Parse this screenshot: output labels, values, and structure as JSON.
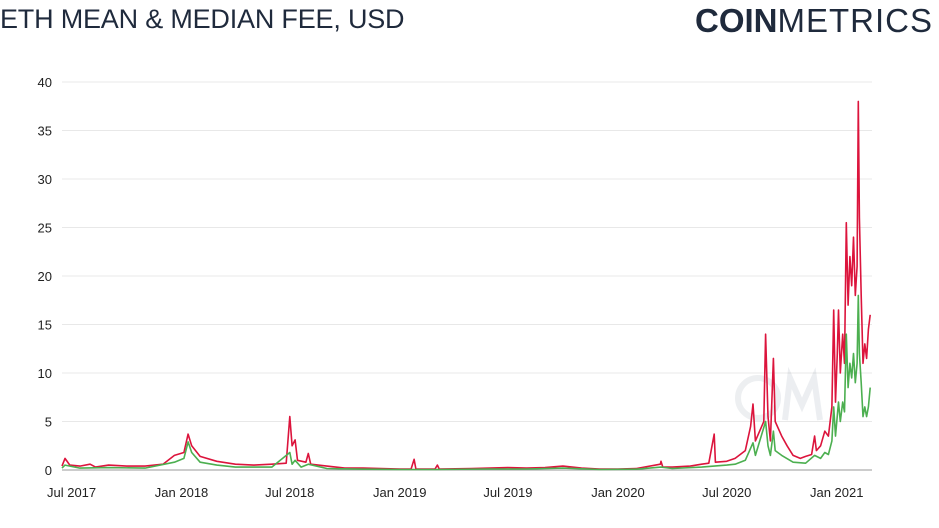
{
  "header": {
    "title": "ETH MEAN & MEDIAN FEE, USD",
    "logo_bold": "COIN",
    "logo_light": "METRICS"
  },
  "colors": {
    "mean": "#dc143c",
    "median": "#4caf50",
    "text": "#1f2a3c",
    "grid": "#e8e8e8"
  },
  "chart_data": {
    "type": "line",
    "title": "ETH MEAN & MEDIAN FEE, USD",
    "xlabel": "",
    "ylabel": "",
    "ylim": [
      0,
      40
    ],
    "yticks": [
      "0",
      "5",
      "10",
      "15",
      "20",
      "25",
      "30",
      "35",
      "40"
    ],
    "xlim": [
      "2017-06-15",
      "2021-03-01"
    ],
    "xticks": [
      {
        "date": "2017-07-01",
        "label": "Jul 2017"
      },
      {
        "date": "2018-01-01",
        "label": "Jan 2018"
      },
      {
        "date": "2018-07-01",
        "label": "Jul 2018"
      },
      {
        "date": "2019-01-01",
        "label": "Jan 2019"
      },
      {
        "date": "2019-07-01",
        "label": "Jul 2019"
      },
      {
        "date": "2020-01-01",
        "label": "Jan 2020"
      },
      {
        "date": "2020-07-01",
        "label": "Jul 2020"
      },
      {
        "date": "2021-01-01",
        "label": "Jan 2021"
      }
    ],
    "grid": true,
    "series": [
      {
        "color": "#dc143c",
        "points": [
          [
            "2017-06-15",
            0.4
          ],
          [
            "2017-06-20",
            1.2
          ],
          [
            "2017-06-28",
            0.5
          ],
          [
            "2017-07-15",
            0.4
          ],
          [
            "2017-08-01",
            0.6
          ],
          [
            "2017-08-10",
            0.3
          ],
          [
            "2017-09-01",
            0.5
          ],
          [
            "2017-10-01",
            0.4
          ],
          [
            "2017-11-01",
            0.4
          ],
          [
            "2017-12-01",
            0.6
          ],
          [
            "2017-12-20",
            1.5
          ],
          [
            "2018-01-05",
            1.8
          ],
          [
            "2018-01-12",
            3.7
          ],
          [
            "2018-01-18",
            2.5
          ],
          [
            "2018-02-01",
            1.4
          ],
          [
            "2018-03-01",
            0.9
          ],
          [
            "2018-04-01",
            0.6
          ],
          [
            "2018-05-01",
            0.5
          ],
          [
            "2018-06-01",
            0.6
          ],
          [
            "2018-06-25",
            0.7
          ],
          [
            "2018-07-01",
            5.5
          ],
          [
            "2018-07-05",
            2.5
          ],
          [
            "2018-07-10",
            3.1
          ],
          [
            "2018-07-14",
            1.0
          ],
          [
            "2018-07-28",
            0.8
          ],
          [
            "2018-08-01",
            1.7
          ],
          [
            "2018-08-05",
            0.6
          ],
          [
            "2018-09-01",
            0.4
          ],
          [
            "2018-10-01",
            0.2
          ],
          [
            "2018-11-01",
            0.2
          ],
          [
            "2018-12-01",
            0.15
          ],
          [
            "2019-01-01",
            0.1
          ],
          [
            "2019-01-20",
            0.1
          ],
          [
            "2019-01-25",
            1.1
          ],
          [
            "2019-01-28",
            0.1
          ],
          [
            "2019-03-01",
            0.1
          ],
          [
            "2019-03-05",
            0.5
          ],
          [
            "2019-03-08",
            0.1
          ],
          [
            "2019-05-01",
            0.15
          ],
          [
            "2019-06-01",
            0.2
          ],
          [
            "2019-07-01",
            0.25
          ],
          [
            "2019-08-01",
            0.2
          ],
          [
            "2019-09-01",
            0.25
          ],
          [
            "2019-10-01",
            0.4
          ],
          [
            "2019-11-01",
            0.2
          ],
          [
            "2019-12-01",
            0.1
          ],
          [
            "2020-01-01",
            0.1
          ],
          [
            "2020-02-01",
            0.15
          ],
          [
            "2020-03-12",
            0.6
          ],
          [
            "2020-03-13",
            0.9
          ],
          [
            "2020-03-16",
            0.3
          ],
          [
            "2020-04-01",
            0.3
          ],
          [
            "2020-05-01",
            0.4
          ],
          [
            "2020-05-20",
            0.6
          ],
          [
            "2020-06-01",
            0.7
          ],
          [
            "2020-06-10",
            3.7
          ],
          [
            "2020-06-12",
            0.8
          ],
          [
            "2020-07-01",
            0.9
          ],
          [
            "2020-07-15",
            1.2
          ],
          [
            "2020-08-01",
            2.0
          ],
          [
            "2020-08-10",
            4.5
          ],
          [
            "2020-08-14",
            6.8
          ],
          [
            "2020-08-18",
            3.0
          ],
          [
            "2020-09-01",
            5.0
          ],
          [
            "2020-09-04",
            14.0
          ],
          [
            "2020-09-08",
            5.5
          ],
          [
            "2020-09-12",
            3.0
          ],
          [
            "2020-09-17",
            11.5
          ],
          [
            "2020-09-20",
            5.0
          ],
          [
            "2020-10-01",
            3.5
          ],
          [
            "2020-10-10",
            2.5
          ],
          [
            "2020-10-20",
            1.5
          ],
          [
            "2020-11-01",
            1.2
          ],
          [
            "2020-11-10",
            1.4
          ],
          [
            "2020-11-20",
            1.6
          ],
          [
            "2020-11-25",
            3.5
          ],
          [
            "2020-11-28",
            2.0
          ],
          [
            "2020-12-05",
            2.5
          ],
          [
            "2020-12-12",
            4.0
          ],
          [
            "2020-12-18",
            3.5
          ],
          [
            "2020-12-24",
            6.5
          ],
          [
            "2020-12-27",
            16.5
          ],
          [
            "2020-12-30",
            7.0
          ],
          [
            "2021-01-02",
            12.0
          ],
          [
            "2021-01-04",
            16.5
          ],
          [
            "2021-01-07",
            10.0
          ],
          [
            "2021-01-11",
            14.0
          ],
          [
            "2021-01-14",
            11.0
          ],
          [
            "2021-01-17",
            25.5
          ],
          [
            "2021-01-20",
            17.0
          ],
          [
            "2021-01-23",
            22.0
          ],
          [
            "2021-01-26",
            19.0
          ],
          [
            "2021-01-29",
            24.0
          ],
          [
            "2021-02-01",
            18.0
          ],
          [
            "2021-02-04",
            21.0
          ],
          [
            "2021-02-06",
            38.0
          ],
          [
            "2021-02-08",
            26.0
          ],
          [
            "2021-02-11",
            18.0
          ],
          [
            "2021-02-14",
            11.0
          ],
          [
            "2021-02-17",
            13.0
          ],
          [
            "2021-02-20",
            11.5
          ],
          [
            "2021-02-23",
            14.5
          ],
          [
            "2021-02-26",
            16.0
          ]
        ]
      },
      {
        "color": "#4caf50",
        "points": [
          [
            "2017-06-15",
            0.2
          ],
          [
            "2017-06-20",
            0.5
          ],
          [
            "2017-07-15",
            0.2
          ],
          [
            "2017-09-01",
            0.25
          ],
          [
            "2017-11-01",
            0.2
          ],
          [
            "2017-12-20",
            0.8
          ],
          [
            "2018-01-05",
            1.2
          ],
          [
            "2018-01-12",
            2.9
          ],
          [
            "2018-01-18",
            1.8
          ],
          [
            "2018-02-01",
            0.8
          ],
          [
            "2018-03-01",
            0.5
          ],
          [
            "2018-04-01",
            0.3
          ],
          [
            "2018-06-01",
            0.3
          ],
          [
            "2018-07-01",
            1.8
          ],
          [
            "2018-07-05",
            0.6
          ],
          [
            "2018-07-10",
            1.0
          ],
          [
            "2018-07-20",
            0.3
          ],
          [
            "2018-08-01",
            0.6
          ],
          [
            "2018-09-01",
            0.15
          ],
          [
            "2018-11-01",
            0.08
          ],
          [
            "2019-01-01",
            0.05
          ],
          [
            "2019-03-01",
            0.05
          ],
          [
            "2019-06-01",
            0.1
          ],
          [
            "2019-08-01",
            0.1
          ],
          [
            "2019-10-01",
            0.2
          ],
          [
            "2019-12-01",
            0.05
          ],
          [
            "2020-02-01",
            0.08
          ],
          [
            "2020-03-13",
            0.3
          ],
          [
            "2020-04-01",
            0.15
          ],
          [
            "2020-05-20",
            0.3
          ],
          [
            "2020-06-10",
            0.4
          ],
          [
            "2020-07-01",
            0.5
          ],
          [
            "2020-07-15",
            0.6
          ],
          [
            "2020-08-01",
            1.0
          ],
          [
            "2020-08-14",
            2.8
          ],
          [
            "2020-08-18",
            1.5
          ],
          [
            "2020-09-04",
            5.0
          ],
          [
            "2020-09-08",
            2.5
          ],
          [
            "2020-09-12",
            1.5
          ],
          [
            "2020-09-17",
            4.0
          ],
          [
            "2020-09-20",
            2.0
          ],
          [
            "2020-10-01",
            1.5
          ],
          [
            "2020-10-20",
            0.8
          ],
          [
            "2020-11-10",
            0.7
          ],
          [
            "2020-11-25",
            1.5
          ],
          [
            "2020-12-05",
            1.2
          ],
          [
            "2020-12-12",
            1.8
          ],
          [
            "2020-12-18",
            1.6
          ],
          [
            "2020-12-24",
            3.0
          ],
          [
            "2020-12-27",
            6.5
          ],
          [
            "2020-12-30",
            3.5
          ],
          [
            "2021-01-04",
            7.0
          ],
          [
            "2021-01-07",
            5.0
          ],
          [
            "2021-01-11",
            7.0
          ],
          [
            "2021-01-14",
            6.0
          ],
          [
            "2021-01-17",
            14.0
          ],
          [
            "2021-01-20",
            8.5
          ],
          [
            "2021-01-23",
            11.0
          ],
          [
            "2021-01-26",
            9.5
          ],
          [
            "2021-01-29",
            12.0
          ],
          [
            "2021-02-01",
            9.0
          ],
          [
            "2021-02-04",
            11.0
          ],
          [
            "2021-02-06",
            18.0
          ],
          [
            "2021-02-08",
            12.0
          ],
          [
            "2021-02-11",
            9.0
          ],
          [
            "2021-02-14",
            5.5
          ],
          [
            "2021-02-17",
            6.5
          ],
          [
            "2021-02-20",
            5.5
          ],
          [
            "2021-02-23",
            6.5
          ],
          [
            "2021-02-26",
            8.5
          ]
        ]
      }
    ]
  }
}
